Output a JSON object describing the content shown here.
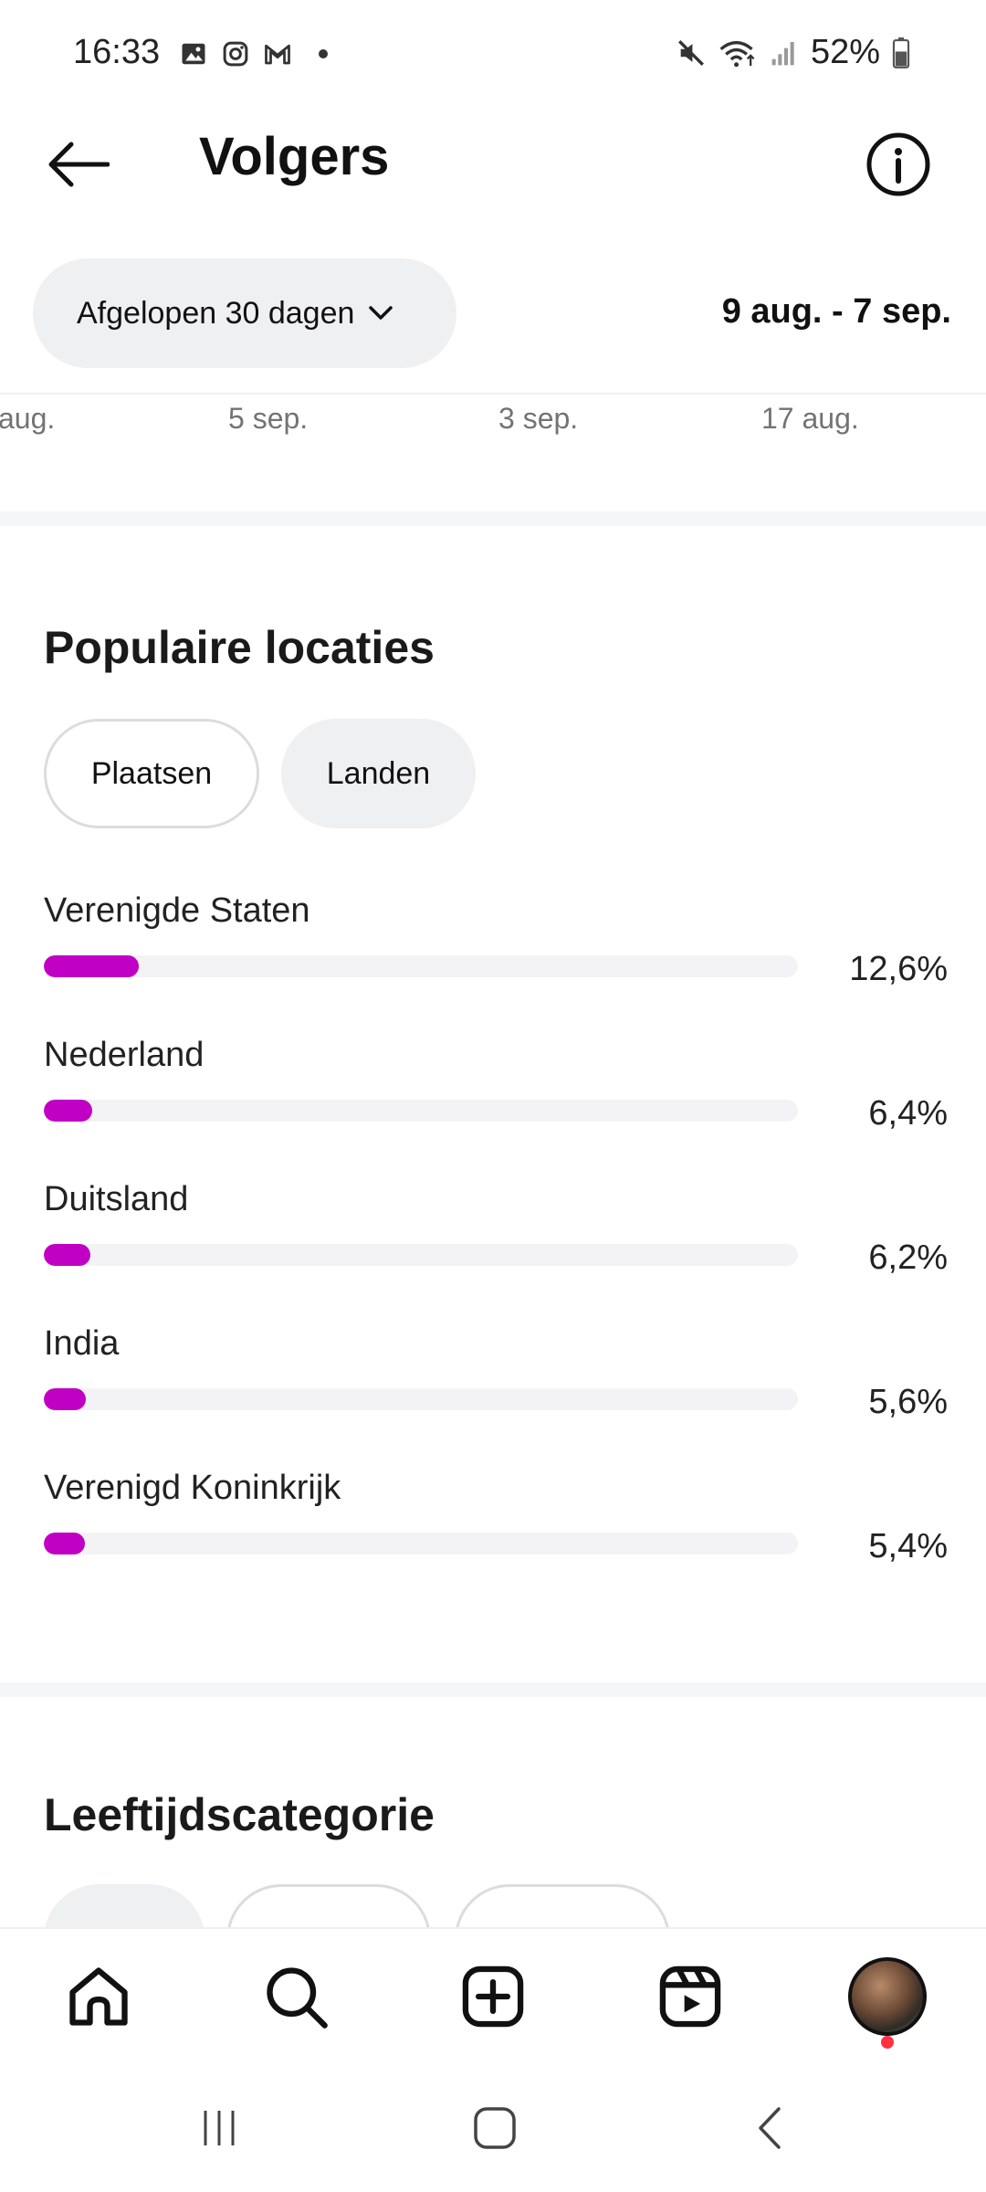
{
  "status_bar": {
    "time": "16:33",
    "left_icons": [
      "gallery-icon",
      "instagram-icon",
      "gmail-icon"
    ],
    "battery": "52%"
  },
  "header": {
    "title": "Volgers"
  },
  "range": {
    "selector_label": "Afgelopen 30 dagen",
    "dates": "9 aug. - 7 sep."
  },
  "axis_labels": [
    "aug.",
    "5 sep.",
    "3 sep.",
    "17 aug."
  ],
  "locations": {
    "title": "Populaire locaties",
    "tabs": [
      {
        "label": "Plaatsen",
        "selected": false
      },
      {
        "label": "Landen",
        "selected": true
      }
    ],
    "items": [
      {
        "name": "Verenigde Staten",
        "percent_label": "12,6%",
        "value": 12.6
      },
      {
        "name": "Nederland",
        "percent_label": "6,4%",
        "value": 6.4
      },
      {
        "name": "Duitsland",
        "percent_label": "6,2%",
        "value": 6.2
      },
      {
        "name": "India",
        "percent_label": "5,6%",
        "value": 5.6
      },
      {
        "name": "Verenigd Koninkrijk",
        "percent_label": "5,4%",
        "value": 5.4
      }
    ]
  },
  "age": {
    "title": "Leeftijdscategorie"
  },
  "colors": {
    "accent": "#c000c4",
    "track": "#f3f3f5",
    "notification": "#ff3040"
  }
}
